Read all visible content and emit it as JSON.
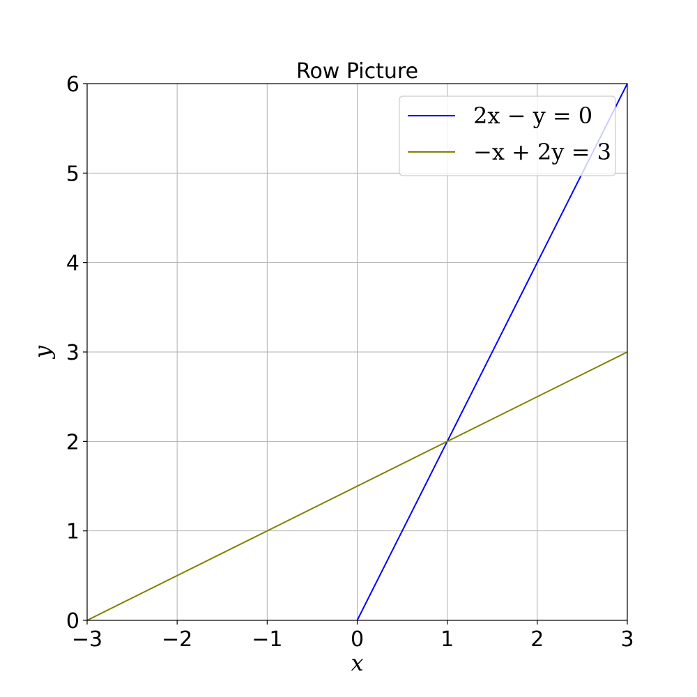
{
  "chart_data": {
    "type": "line",
    "title": "Row Picture",
    "xlabel": "x",
    "ylabel": "y",
    "xlim": [
      -3,
      3
    ],
    "ylim": [
      0,
      6
    ],
    "x_ticks": [
      -3,
      -2,
      -1,
      0,
      1,
      2,
      3
    ],
    "y_ticks": [
      0,
      1,
      2,
      3,
      4,
      5,
      6
    ],
    "x_tick_labels": [
      "−3",
      "−2",
      "−1",
      "0",
      "1",
      "2",
      "3"
    ],
    "y_tick_labels": [
      "0",
      "1",
      "2",
      "3",
      "4",
      "5",
      "6"
    ],
    "grid": true,
    "legend_position": "top-right",
    "series": [
      {
        "name": "2x − y = 0",
        "color": "#0000ff",
        "x": [
          0,
          3
        ],
        "y": [
          0,
          6
        ]
      },
      {
        "name": "−x + 2y = 3",
        "color": "#808000",
        "x": [
          -3,
          3
        ],
        "y": [
          0,
          3
        ]
      }
    ]
  }
}
